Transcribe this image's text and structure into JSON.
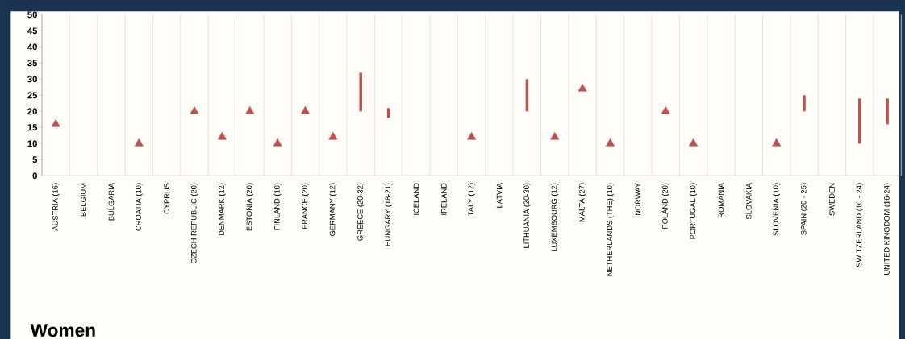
{
  "chart_data": {
    "type": "scatter",
    "title": "Women",
    "categories": [
      "AUSTRIA (16)",
      "BELGIUM",
      "BULGARIA",
      "CROATIA (10)",
      "CYPRUS",
      "CZECH REPUBLIC (20)",
      "DENMARK (12)",
      "ESTONIA (20)",
      "FINLAND (10)",
      "FRANCE (20)",
      "GERMANY (12)",
      "GREECE (20-32)",
      "HUNGARY (18-21)",
      "ICELAND",
      "IRELAND",
      "ITALY (12)",
      "LATVIA",
      "LITHUANIA (20-30)",
      "LUXEMBOURG (12)",
      "MALTA (27)",
      "NETHERLANDS (THE) (10)",
      "NORWAY",
      "POLAND (20)",
      "PORTUGAL (10)",
      "ROMANIA",
      "SLOVAKIA",
      "SLOVENIA (10)",
      "SPAIN (20 - 25)",
      "SWEDEN",
      "SWITZERLAND (10 - 24)",
      "UNITED KINGDOM (16-24)"
    ],
    "series": [
      {
        "marker": "triangle",
        "color": "#c0504d",
        "values": [
          16,
          null,
          null,
          10,
          null,
          20,
          12,
          20,
          10,
          20,
          12,
          null,
          null,
          null,
          null,
          12,
          null,
          null,
          12,
          27,
          10,
          null,
          20,
          10,
          null,
          null,
          10,
          null,
          null,
          null,
          null
        ]
      },
      {
        "type": "bar",
        "color": "#c0504d",
        "values": [
          null,
          null,
          null,
          null,
          null,
          null,
          null,
          null,
          null,
          null,
          null,
          12,
          3,
          null,
          null,
          null,
          null,
          10,
          null,
          null,
          null,
          null,
          null,
          null,
          null,
          null,
          null,
          5,
          null,
          14,
          8
        ],
        "base": [
          null,
          null,
          null,
          null,
          null,
          null,
          null,
          null,
          null,
          null,
          null,
          20,
          18,
          null,
          null,
          null,
          null,
          20,
          null,
          null,
          null,
          null,
          null,
          null,
          null,
          null,
          null,
          20,
          null,
          10,
          16
        ]
      }
    ],
    "ylim": [
      0,
      50
    ],
    "yticks": [
      0,
      5,
      10,
      15,
      20,
      25,
      30,
      35,
      40,
      45,
      50
    ],
    "grid": "x"
  }
}
